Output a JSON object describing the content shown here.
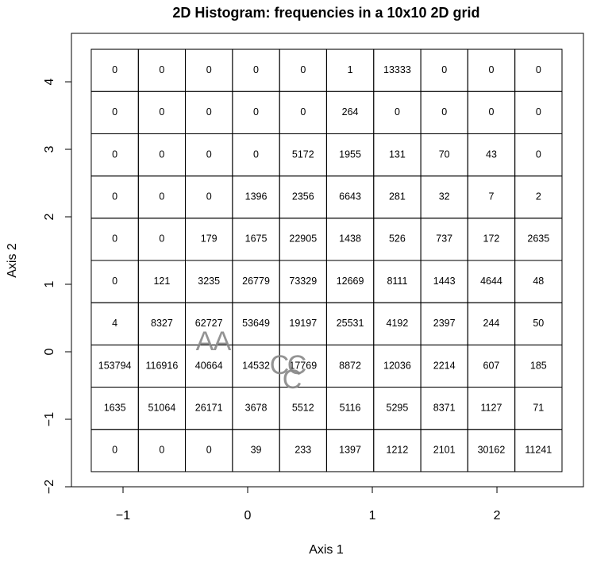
{
  "chart_data": {
    "type": "hist2d",
    "title": "2D Histogram: frequencies in a 10x10 2D grid",
    "xlabel": "Axis 1",
    "ylabel": "Axis 2",
    "xlim": [
      -1.414,
      2.694
    ],
    "ylim": [
      -2,
      4.718
    ],
    "xticks": [
      {
        "value": -1,
        "label": "−1"
      },
      0,
      1,
      2
    ],
    "yticks": [
      {
        "value": -2,
        "label": "−2"
      },
      {
        "value": -1,
        "label": "−1"
      },
      0,
      1,
      2,
      3,
      4
    ],
    "xbins": [
      -1.255,
      -0.877,
      -0.5,
      -0.122,
      0.256,
      0.633,
      1.011,
      1.389,
      1.766,
      2.144,
      2.522
    ],
    "ybins": [
      -1.776,
      -1.15,
      -0.524,
      0.101,
      0.727,
      1.353,
      1.979,
      2.604,
      3.23,
      3.856,
      4.482
    ],
    "counts": [
      [
        0,
        0,
        0,
        39,
        233,
        1397,
        1212,
        2101,
        30162,
        11241
      ],
      [
        1635,
        51064,
        26171,
        3678,
        5512,
        5116,
        5295,
        8371,
        1127,
        71
      ],
      [
        153794,
        116916,
        40664,
        14532,
        17769,
        8872,
        12036,
        2214,
        607,
        185
      ],
      [
        4,
        8327,
        62727,
        53649,
        19197,
        25531,
        4192,
        2397,
        244,
        50
      ],
      [
        0,
        121,
        3235,
        26779,
        73329,
        12669,
        8111,
        1443,
        4644,
        48
      ],
      [
        0,
        0,
        179,
        1675,
        22905,
        1438,
        526,
        737,
        172,
        2635
      ],
      [
        0,
        0,
        0,
        1396,
        2356,
        6643,
        281,
        32,
        7,
        2
      ],
      [
        0,
        0,
        0,
        0,
        5172,
        1955,
        131,
        70,
        43,
        0
      ],
      [
        0,
        0,
        0,
        0,
        0,
        264,
        0,
        0,
        0,
        0
      ],
      [
        0,
        0,
        0,
        0,
        0,
        1,
        13333,
        0,
        0,
        0
      ]
    ],
    "annotations": [
      {
        "text": "A",
        "x": -0.344,
        "y": 0.13
      },
      {
        "text": "A",
        "x": -0.204,
        "y": 0.13
      },
      {
        "text": "C",
        "x": 0.255,
        "y": -0.224
      },
      {
        "text": "C",
        "x": 0.395,
        "y": -0.224
      },
      {
        "text": "C",
        "x": 0.357,
        "y": -0.435
      }
    ]
  }
}
